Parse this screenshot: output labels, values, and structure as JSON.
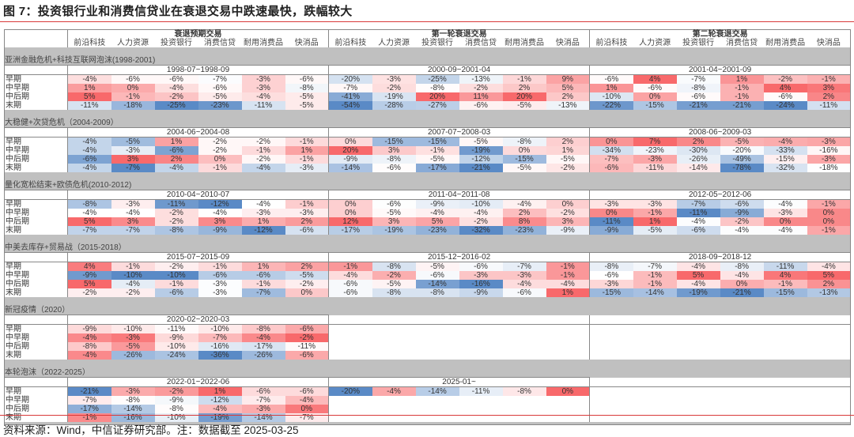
{
  "title": "图 7：投资银行业和消费信贷业在衰退交易中跌速最快，跌幅较大",
  "footer": "资料来源：Wind，中信证券研究部。注：数据截至 2025-03-25",
  "colors": {
    "positive": "#f8696b",
    "negative": "#5a8ac6",
    "neutral": "#ffffff",
    "rule": "#d9393a"
  },
  "chart_data": {
    "type": "heatmap",
    "groups": [
      "衰退预期交易",
      "第一轮衰退交易",
      "第二轮衰退交易"
    ],
    "columns": [
      "前沿科技",
      "人力资源",
      "投资银行",
      "消费信贷",
      "耐用消费品",
      "快消品"
    ],
    "stages": [
      "早期",
      "中早期",
      "中后期",
      "末期"
    ],
    "sections": [
      {
        "title": "亚洲金融危机+科技互联网泡沫(1998-2001)",
        "periods": [
          {
            "date": "1998-07~1998-09",
            "rows": [
              [
                "-4%",
                "-6%",
                "-6%",
                "-7%",
                "-3%",
                "-6%"
              ],
              [
                "1%",
                "0%",
                "-4%",
                "-6%",
                "-3%",
                "-8%"
              ],
              [
                "5%",
                "-1%",
                "-2%",
                "-5%",
                "-4%",
                "-5%"
              ],
              [
                "-11%",
                "-18%",
                "-25%",
                "-23%",
                "-11%",
                "-5%"
              ]
            ]
          },
          {
            "date": "2000-09~2001-04",
            "rows": [
              [
                "-20%",
                "-3%",
                "-25%",
                "-13%",
                "-1%",
                "9%"
              ],
              [
                "-7%",
                "-2%",
                "-8%",
                "-2%",
                "2%",
                "5%"
              ],
              [
                "-41%",
                "-19%",
                "20%",
                "11%",
                "20%",
                "2%"
              ],
              [
                "-54%",
                "-28%",
                "-27%",
                "-6%",
                "-5%",
                "-13%"
              ]
            ]
          },
          {
            "date": "2001-04~2001-09",
            "rows": [
              [
                "-6%",
                "4%",
                "-7%",
                "1%",
                "-2%",
                "-1%"
              ],
              [
                "1%",
                "-6%",
                "-8%",
                "-1%",
                "4%",
                "3%"
              ],
              [
                "-10%",
                "0%",
                "-6%",
                "-1%",
                "-6%",
                "2%"
              ],
              [
                "-22%",
                "-15%",
                "-21%",
                "-21%",
                "-24%",
                "-11%"
              ]
            ]
          }
        ]
      },
      {
        "title": "大稳健+次贷危机（2004-2009）",
        "periods": [
          {
            "date": "2004-06~2004-08",
            "rows": [
              [
                "-4%",
                "-5%",
                "1%",
                "-2%",
                "-2%",
                "-1%"
              ],
              [
                "-4%",
                "-3%",
                "-6%",
                "-2%",
                "-1%",
                "1%"
              ],
              [
                "-6%",
                "3%",
                "2%",
                "0%",
                "-2%",
                "-1%"
              ],
              [
                "-4%",
                "-7%",
                "-4%",
                "-1%",
                "-4%",
                "-3%"
              ]
            ]
          },
          {
            "date": "2007-07~2008-03",
            "rows": [
              [
                "0%",
                "-15%",
                "-15%",
                "-5%",
                "-8%",
                "2%"
              ],
              [
                "20%",
                "3%",
                "-1%",
                "-19%",
                "0%",
                "1%"
              ],
              [
                "-9%",
                "-8%",
                "-5%",
                "-12%",
                "-15%",
                "-5%"
              ],
              [
                "-14%",
                "-6%",
                "-17%",
                "-21%",
                "-5%",
                "-2%"
              ]
            ]
          },
          {
            "date": "2008-06~2009-03",
            "rows": [
              [
                "0%",
                "7%",
                "2%",
                "-5%",
                "-4%",
                "-3%"
              ],
              [
                "-34%",
                "-23%",
                "-30%",
                "-20%",
                "-33%",
                "-16%"
              ],
              [
                "-7%",
                "-3%",
                "-26%",
                "-49%",
                "-15%",
                "-3%"
              ],
              [
                "-6%",
                "-11%",
                "-14%",
                "-78%",
                "-32%",
                "-18%"
              ]
            ]
          }
        ]
      },
      {
        "title": "量化宽松结束+欧债危机(2010-2012)",
        "periods": [
          {
            "date": "2010-04~2010-07",
            "rows": [
              [
                "-8%",
                "-3%",
                "-11%",
                "-12%",
                "-4%",
                "-1%"
              ],
              [
                "-4%",
                "-4%",
                "-2%",
                "-4%",
                "-3%",
                "-3%"
              ],
              [
                "5%",
                "3%",
                "-2%",
                "3%",
                "1%",
                "2%"
              ],
              [
                "-7%",
                "-7%",
                "-8%",
                "-9%",
                "-12%",
                "-6%"
              ]
            ]
          },
          {
            "date": "2011-04~2011-08",
            "rows": [
              [
                "0%",
                "-6%",
                "-9%",
                "-10%",
                "-4%",
                "0%"
              ],
              [
                "0%",
                "-5%",
                "-4%",
                "-4%",
                "2%",
                "-2%"
              ],
              [
                "12%",
                "3%",
                "5%",
                "-2%",
                "8%",
                "3%"
              ],
              [
                "-17%",
                "-19%",
                "-23%",
                "-32%",
                "-23%",
                "-9%"
              ]
            ]
          },
          {
            "date": "2012-05~2012-06",
            "rows": [
              [
                "-3%",
                "-3%",
                "-7%",
                "-6%",
                "-4%",
                "-1%"
              ],
              [
                "0%",
                "-1%",
                "-11%",
                "-9%",
                "-3%",
                "0%"
              ],
              [
                "-11%",
                "1%",
                "-4%",
                "-2%",
                "0%",
                "0%"
              ],
              [
                "-9%",
                "-5%",
                "-6%",
                "-4%",
                "-4%",
                "-1%"
              ]
            ]
          }
        ]
      },
      {
        "title": "中美去库存+贸易战（2015-2018）",
        "periods": [
          {
            "date": "2015-07~2015-09",
            "rows": [
              [
                "4%",
                "-1%",
                "-2%",
                "-1%",
                "1%",
                "2%"
              ],
              [
                "-9%",
                "-10%",
                "-10%",
                "-6%",
                "-6%",
                "-5%"
              ],
              [
                "5%",
                "-4%",
                "-1%",
                "-3%",
                "-1%",
                "-2%"
              ],
              [
                "-2%",
                "-2%",
                "-6%",
                "-3%",
                "-7%",
                "0%"
              ]
            ]
          },
          {
            "date": "2015-12~2016-02",
            "rows": [
              [
                "-1%",
                "-8%",
                "-5%",
                "-6%",
                "-7%",
                "-1%"
              ],
              [
                "-4%",
                "-2%",
                "-6%",
                "-3%",
                "-3%",
                "-1%"
              ],
              [
                "-6%",
                "-5%",
                "-14%",
                "-16%",
                "-4%",
                "-4%"
              ],
              [
                "-6%",
                "-8%",
                "-8%",
                "-9%",
                "-6%",
                "1%"
              ]
            ]
          },
          {
            "date": "2018-09~2018-12",
            "rows": [
              [
                "-8%",
                "-7%",
                "-4%",
                "-8%",
                "-11%",
                "-4%"
              ],
              [
                "-6%",
                "-1%",
                "5%",
                "-4%",
                "4%",
                "5%"
              ],
              [
                "-3%",
                "-1%",
                "-4%",
                "0%",
                "-1%",
                "2%"
              ],
              [
                "-15%",
                "-14%",
                "-19%",
                "-21%",
                "-15%",
                "-13%"
              ]
            ]
          }
        ]
      },
      {
        "title": "新冠疫情（2020）",
        "periods": [
          {
            "date": "2020-02~2020-03",
            "rows": [
              [
                "-9%",
                "-10%",
                "-11%",
                "-10%",
                "-8%",
                "-6%"
              ],
              [
                "-4%",
                "-3%",
                "-9%",
                "-7%",
                "-4%",
                "-2%"
              ],
              [
                "-8%",
                "-5%",
                "-10%",
                "-16%",
                "-17%",
                "-11%"
              ],
              [
                "-4%",
                "-26%",
                "-24%",
                "-36%",
                "-26%",
                "-6%"
              ]
            ]
          },
          null,
          null
        ]
      },
      {
        "title": "本轮泡沫（2022-2025）",
        "periods": [
          {
            "date": "2022-01~2022-06",
            "rows": [
              [
                "-21%",
                "-3%",
                "-2%",
                "1%",
                "-6%",
                "-6%"
              ],
              [
                "-7%",
                "-8%",
                "-9%",
                "-12%",
                "-7%",
                "-4%"
              ],
              [
                "-17%",
                "-14%",
                "-8%",
                "-4%",
                "-3%",
                "0%"
              ],
              [
                "-1%",
                "-16%",
                "-10%",
                "-19%",
                "-14%",
                "-7%"
              ]
            ]
          },
          {
            "date": "2025-01~",
            "rows": [
              [
                "-20%",
                "-4%",
                "-14%",
                "-11%",
                "-8%",
                "0%"
              ]
            ]
          },
          null
        ]
      }
    ]
  }
}
